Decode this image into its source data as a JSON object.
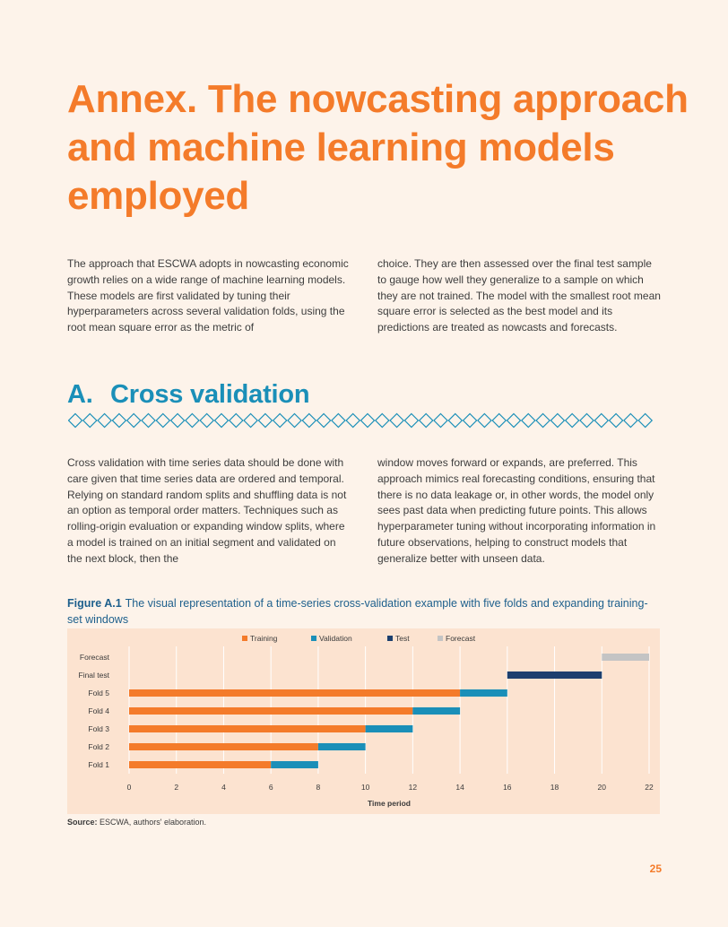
{
  "title": "Annex.  The nowcasting approach and machine learning models employed",
  "intro": {
    "col1": "The approach that ESCWA adopts in nowcasting economic growth relies on a wide range of machine learning models. These models are first validated by tuning their hyperparameters across several validation folds, using the root mean square error as the metric of",
    "col2": "choice. They are then assessed over the final test sample to gauge how well they generalize to a sample on which they are not trained. The model with the smallest root mean square error is selected as the best model and its predictions are treated as nowcasts and forecasts."
  },
  "section": {
    "number": "A.",
    "title": "Cross validation",
    "col1": "Cross validation with time series data should be done with care given that time series data are ordered and temporal. Relying on standard random splits and shuffling data is not an option as temporal order matters. Techniques such as rolling-origin evaluation or expanding window splits, where a model is trained on an initial segment and validated on the next block, then the",
    "col2": "window moves forward or expands, are preferred. This approach mimics real forecasting conditions, ensuring that there is no data leakage or, in other words, the model only sees past data when predicting future points. This allows hyperparameter tuning without incorporating information in future observations, helping to construct models that generalize better with unseen data."
  },
  "figure": {
    "label": "Figure A.1",
    "caption": "The visual representation of a time-series cross-validation example with five folds and expanding training-set windows"
  },
  "chart_data": {
    "type": "bar",
    "orientation": "horizontal",
    "stacked": true,
    "categories": [
      "Forecast",
      "Final test",
      "Fold 5",
      "Fold 4",
      "Fold 3",
      "Fold 2",
      "Fold 1"
    ],
    "series": [
      {
        "name": "Training",
        "color": "#f47b2a",
        "segments": [
          null,
          null,
          [
            0,
            14
          ],
          [
            0,
            12
          ],
          [
            0,
            10
          ],
          [
            0,
            8
          ],
          [
            0,
            6
          ]
        ]
      },
      {
        "name": "Validation",
        "color": "#1a8fb8",
        "segments": [
          null,
          null,
          [
            14,
            16
          ],
          [
            12,
            14
          ],
          [
            10,
            12
          ],
          [
            8,
            10
          ],
          [
            6,
            8
          ]
        ]
      },
      {
        "name": "Test",
        "color": "#1c3f6e",
        "segments": [
          null,
          [
            16,
            20
          ],
          null,
          null,
          null,
          null,
          null
        ]
      },
      {
        "name": "Forecast",
        "color": "#c4c4c4",
        "segments": [
          [
            20,
            22
          ],
          null,
          null,
          null,
          null,
          null,
          null
        ]
      }
    ],
    "xlabel": "Time period",
    "xlim": [
      0,
      22
    ],
    "xticks": [
      "0",
      "2",
      "4",
      "6",
      "8",
      "10",
      "12",
      "14",
      "16",
      "18",
      "20",
      "22"
    ],
    "grid": true,
    "legend": "top"
  },
  "source": {
    "label": "Source:",
    "text": "ESCWA, authors' elaboration."
  },
  "page_number": "25"
}
